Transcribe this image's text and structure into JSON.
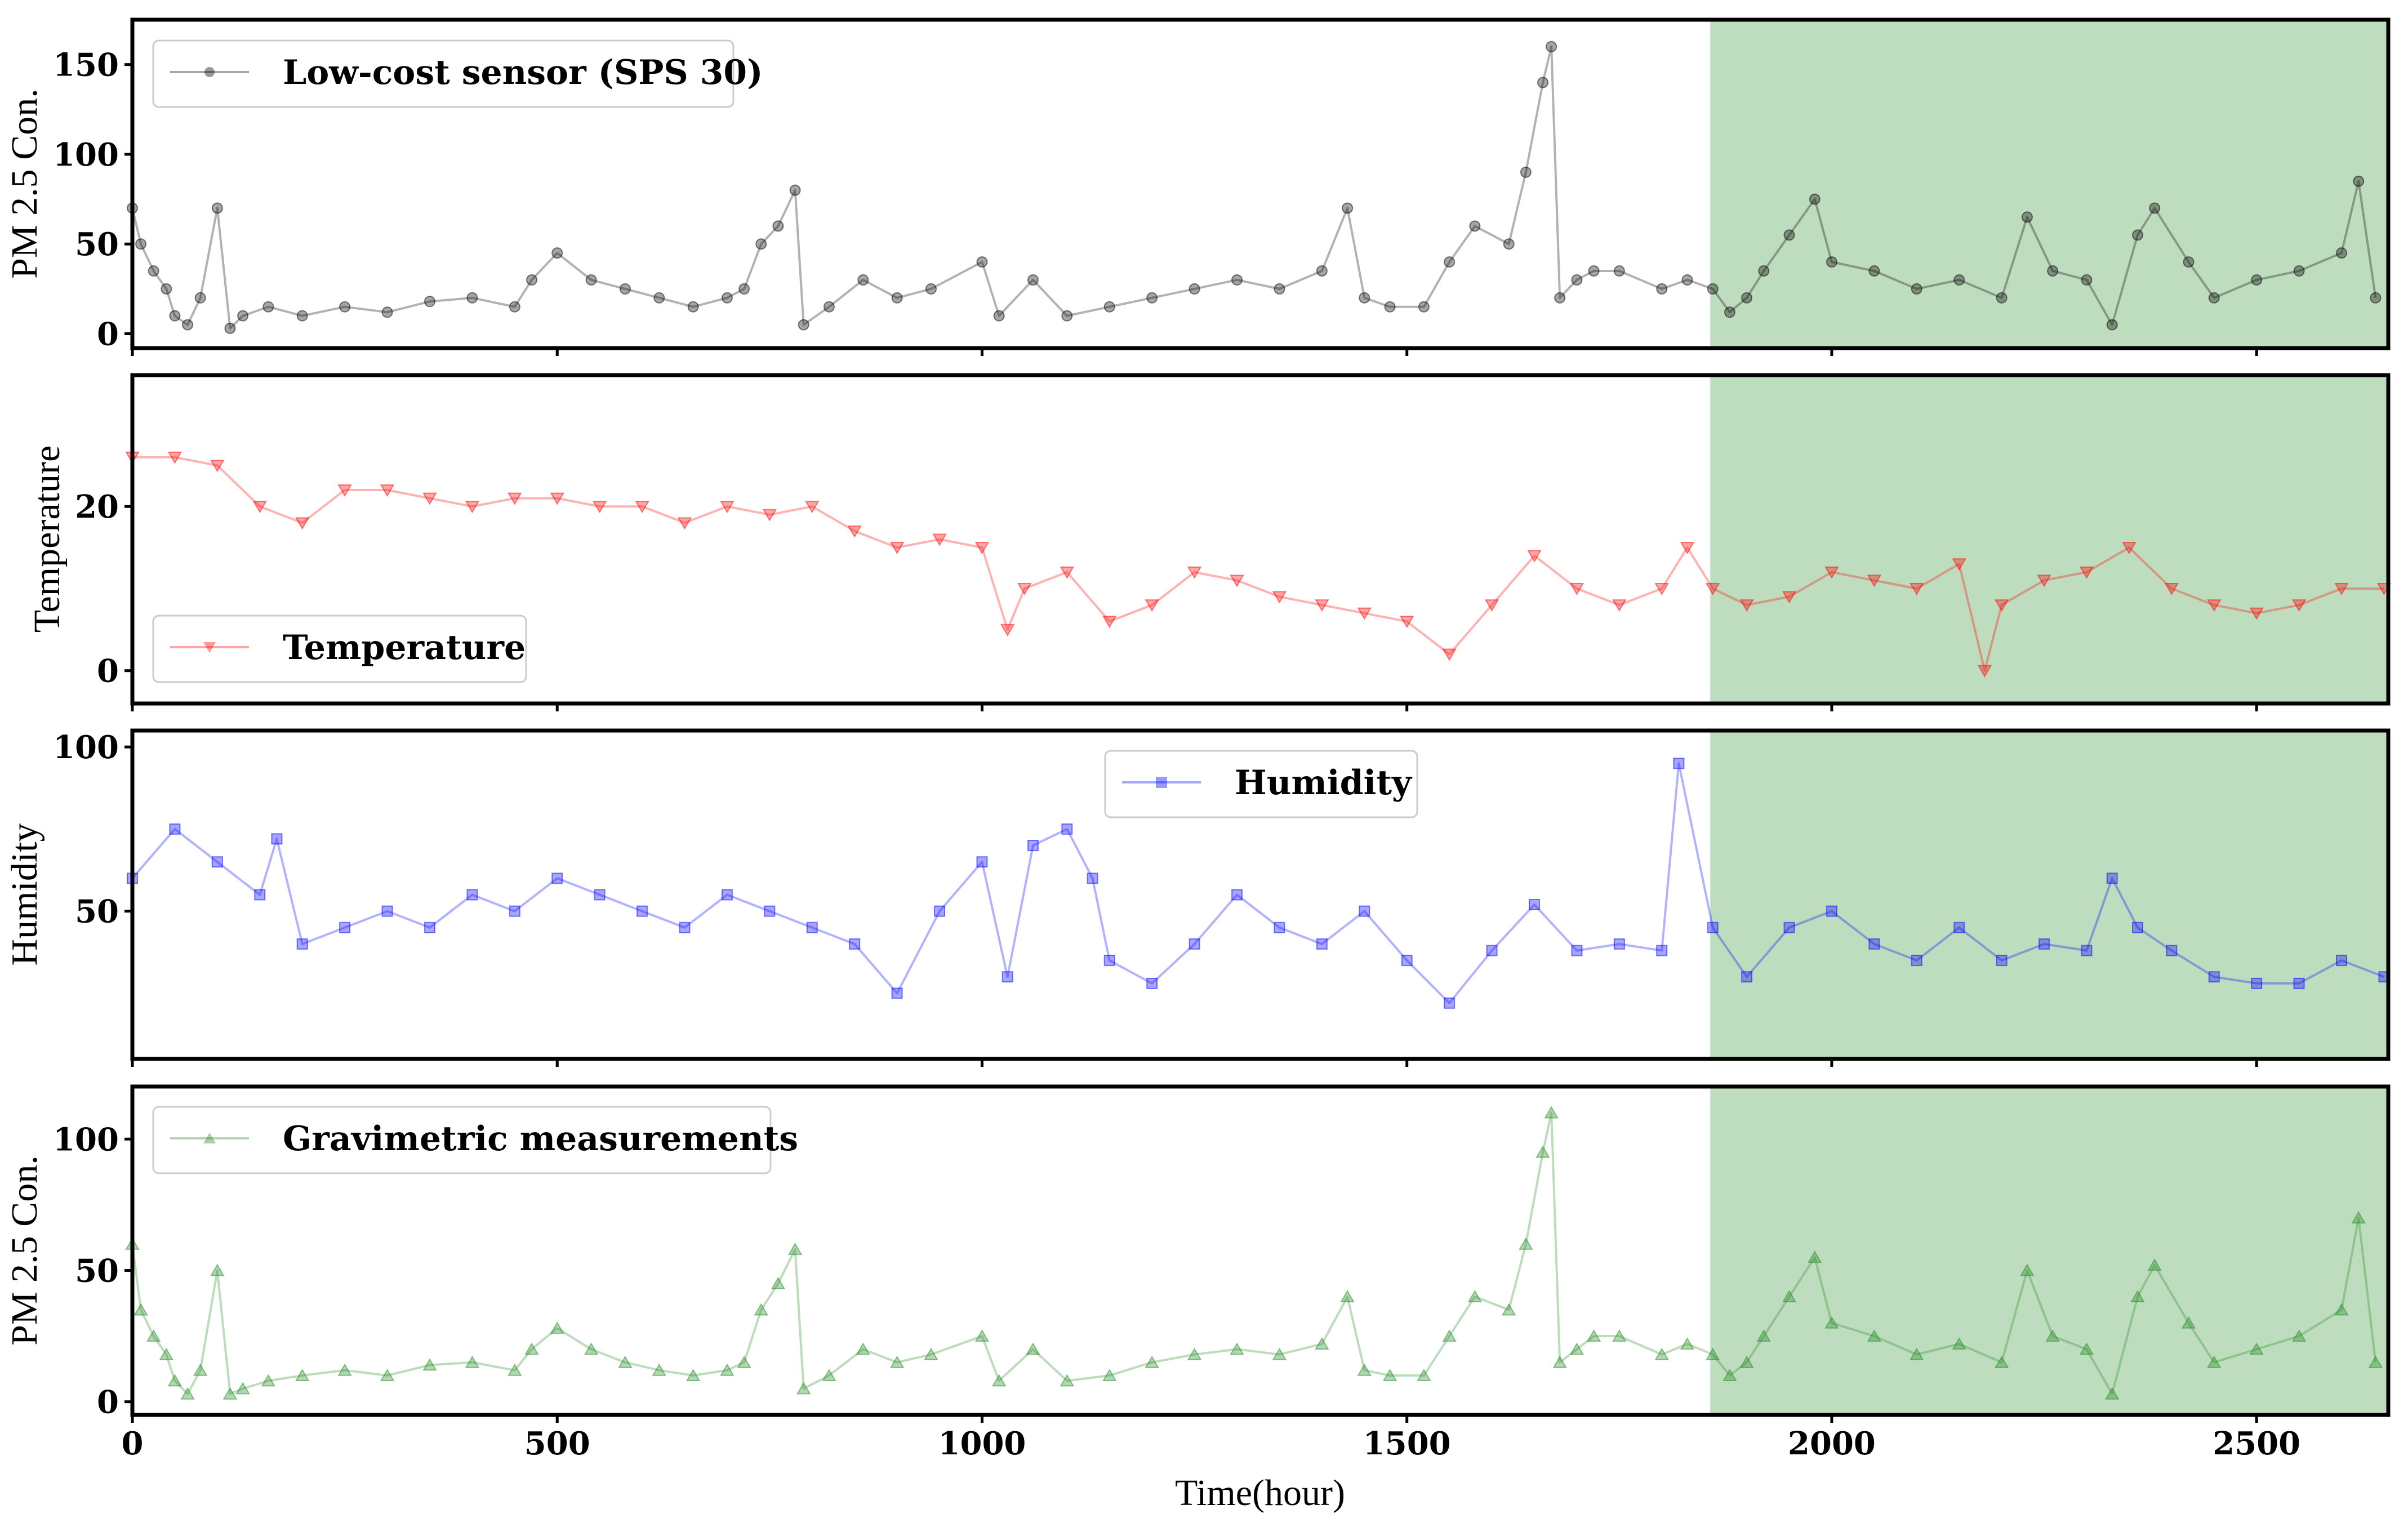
{
  "chart_data": {
    "type": "line",
    "xlabel": "Time(hour)",
    "xlim": [
      0,
      2655
    ],
    "xticks": [
      0,
      500,
      1000,
      1500,
      2000,
      2500
    ],
    "highlight": {
      "x_range": [
        1857,
        2655
      ],
      "color": "#bedcbe"
    },
    "panels": [
      {
        "name": "pm25-sensor",
        "ylabel": "PM 2.5 Con.",
        "ylim": [
          -8,
          175
        ],
        "yticks": [
          0,
          50,
          100,
          150
        ],
        "legend": {
          "label": "Low-cost sensor (SPS 30)",
          "position": "top-left"
        },
        "series": {
          "name": "Low-cost sensor (SPS 30)",
          "color": "#000000",
          "marker": "circle",
          "x": [
            0,
            10,
            25,
            40,
            50,
            65,
            80,
            100,
            115,
            130,
            160,
            200,
            250,
            300,
            350,
            400,
            450,
            470,
            500,
            540,
            580,
            620,
            660,
            700,
            720,
            740,
            760,
            780,
            790,
            820,
            860,
            900,
            940,
            1000,
            1020,
            1060,
            1100,
            1150,
            1200,
            1250,
            1300,
            1350,
            1400,
            1430,
            1450,
            1480,
            1520,
            1550,
            1580,
            1620,
            1640,
            1660,
            1670,
            1680,
            1700,
            1720,
            1750,
            1800,
            1830,
            1860,
            1880,
            1900,
            1920,
            1950,
            1980,
            2000,
            2050,
            2100,
            2150,
            2200,
            2230,
            2260,
            2300,
            2330,
            2360,
            2380,
            2420,
            2450,
            2500,
            2550,
            2600,
            2620,
            2640
          ],
          "y": [
            70,
            50,
            35,
            25,
            10,
            5,
            20,
            70,
            3,
            10,
            15,
            10,
            15,
            12,
            18,
            20,
            15,
            30,
            45,
            30,
            25,
            20,
            15,
            20,
            25,
            50,
            60,
            80,
            5,
            15,
            30,
            20,
            25,
            40,
            10,
            30,
            10,
            15,
            20,
            25,
            30,
            25,
            35,
            70,
            20,
            15,
            15,
            40,
            60,
            50,
            90,
            140,
            160,
            20,
            30,
            35,
            35,
            25,
            30,
            25,
            12,
            20,
            35,
            55,
            75,
            40,
            35,
            25,
            30,
            20,
            65,
            35,
            30,
            5,
            55,
            70,
            40,
            20,
            30,
            35,
            45,
            85,
            20
          ]
        }
      },
      {
        "name": "temperature",
        "ylabel": "Temperature",
        "ylim": [
          -4,
          36
        ],
        "yticks": [
          0,
          20
        ],
        "legend": {
          "label": "Temperature",
          "position": "bottom-left"
        },
        "series": {
          "name": "Temperature",
          "color": "#ff0000",
          "marker": "triangle-down",
          "x": [
            0,
            50,
            100,
            150,
            200,
            250,
            300,
            350,
            400,
            450,
            500,
            550,
            600,
            650,
            700,
            750,
            800,
            850,
            900,
            950,
            1000,
            1030,
            1050,
            1100,
            1150,
            1200,
            1250,
            1300,
            1350,
            1400,
            1450,
            1500,
            1550,
            1600,
            1650,
            1700,
            1750,
            1800,
            1830,
            1860,
            1900,
            1950,
            2000,
            2050,
            2100,
            2150,
            2180,
            2200,
            2250,
            2300,
            2350,
            2400,
            2450,
            2500,
            2550,
            2600,
            2650
          ],
          "y": [
            26,
            26,
            25,
            20,
            18,
            22,
            22,
            21,
            20,
            21,
            21,
            20,
            20,
            18,
            20,
            19,
            20,
            17,
            15,
            16,
            15,
            5,
            10,
            12,
            6,
            8,
            12,
            11,
            9,
            8,
            7,
            6,
            2,
            8,
            14,
            10,
            8,
            10,
            15,
            10,
            8,
            9,
            12,
            11,
            10,
            13,
            0,
            8,
            11,
            12,
            15,
            10,
            8,
            7,
            8,
            10,
            10
          ]
        }
      },
      {
        "name": "humidity",
        "ylabel": "Humidity",
        "ylim": [
          5,
          105
        ],
        "yticks": [
          50,
          100
        ],
        "legend": {
          "label": "Humidity",
          "position": "top-center"
        },
        "series": {
          "name": "Humidity",
          "color": "#0000ff",
          "marker": "square",
          "x": [
            0,
            50,
            100,
            150,
            170,
            200,
            250,
            300,
            350,
            400,
            450,
            500,
            550,
            600,
            650,
            700,
            750,
            800,
            850,
            900,
            950,
            1000,
            1030,
            1060,
            1100,
            1130,
            1150,
            1200,
            1250,
            1300,
            1350,
            1400,
            1450,
            1500,
            1550,
            1600,
            1650,
            1700,
            1750,
            1800,
            1820,
            1860,
            1900,
            1950,
            2000,
            2050,
            2100,
            2150,
            2200,
            2250,
            2300,
            2330,
            2360,
            2400,
            2450,
            2500,
            2550,
            2600,
            2650
          ],
          "y": [
            60,
            75,
            65,
            55,
            72,
            40,
            45,
            50,
            45,
            55,
            50,
            60,
            55,
            50,
            45,
            55,
            50,
            45,
            40,
            25,
            50,
            65,
            30,
            70,
            75,
            60,
            35,
            28,
            40,
            55,
            45,
            40,
            50,
            35,
            22,
            38,
            52,
            38,
            40,
            38,
            95,
            45,
            30,
            45,
            50,
            40,
            35,
            45,
            35,
            40,
            38,
            60,
            45,
            38,
            30,
            28,
            28,
            35,
            30
          ]
        }
      },
      {
        "name": "pm25-gravimetric",
        "ylabel": "PM 2.5 Con.",
        "ylim": [
          -5,
          120
        ],
        "yticks": [
          0,
          50,
          100
        ],
        "legend": {
          "label": "Gravimetric measurements",
          "position": "top-left"
        },
        "series": {
          "name": "Gravimetric measurements",
          "color": "#228b22",
          "marker": "triangle-up",
          "x": [
            0,
            10,
            25,
            40,
            50,
            65,
            80,
            100,
            115,
            130,
            160,
            200,
            250,
            300,
            350,
            400,
            450,
            470,
            500,
            540,
            580,
            620,
            660,
            700,
            720,
            740,
            760,
            780,
            790,
            820,
            860,
            900,
            940,
            1000,
            1020,
            1060,
            1100,
            1150,
            1200,
            1250,
            1300,
            1350,
            1400,
            1430,
            1450,
            1480,
            1520,
            1550,
            1580,
            1620,
            1640,
            1660,
            1670,
            1680,
            1700,
            1720,
            1750,
            1800,
            1830,
            1860,
            1880,
            1900,
            1920,
            1950,
            1980,
            2000,
            2050,
            2100,
            2150,
            2200,
            2230,
            2260,
            2300,
            2330,
            2360,
            2380,
            2420,
            2450,
            2500,
            2550,
            2600,
            2620,
            2640
          ],
          "y": [
            60,
            35,
            25,
            18,
            8,
            3,
            12,
            50,
            3,
            5,
            8,
            10,
            12,
            10,
            14,
            15,
            12,
            20,
            28,
            20,
            15,
            12,
            10,
            12,
            15,
            35,
            45,
            58,
            5,
            10,
            20,
            15,
            18,
            25,
            8,
            20,
            8,
            10,
            15,
            18,
            20,
            18,
            22,
            40,
            12,
            10,
            10,
            25,
            40,
            35,
            60,
            95,
            110,
            15,
            20,
            25,
            25,
            18,
            22,
            18,
            10,
            15,
            25,
            40,
            55,
            30,
            25,
            18,
            22,
            15,
            50,
            25,
            20,
            3,
            40,
            52,
            30,
            15,
            20,
            25,
            35,
            70,
            15
          ]
        }
      }
    ]
  }
}
